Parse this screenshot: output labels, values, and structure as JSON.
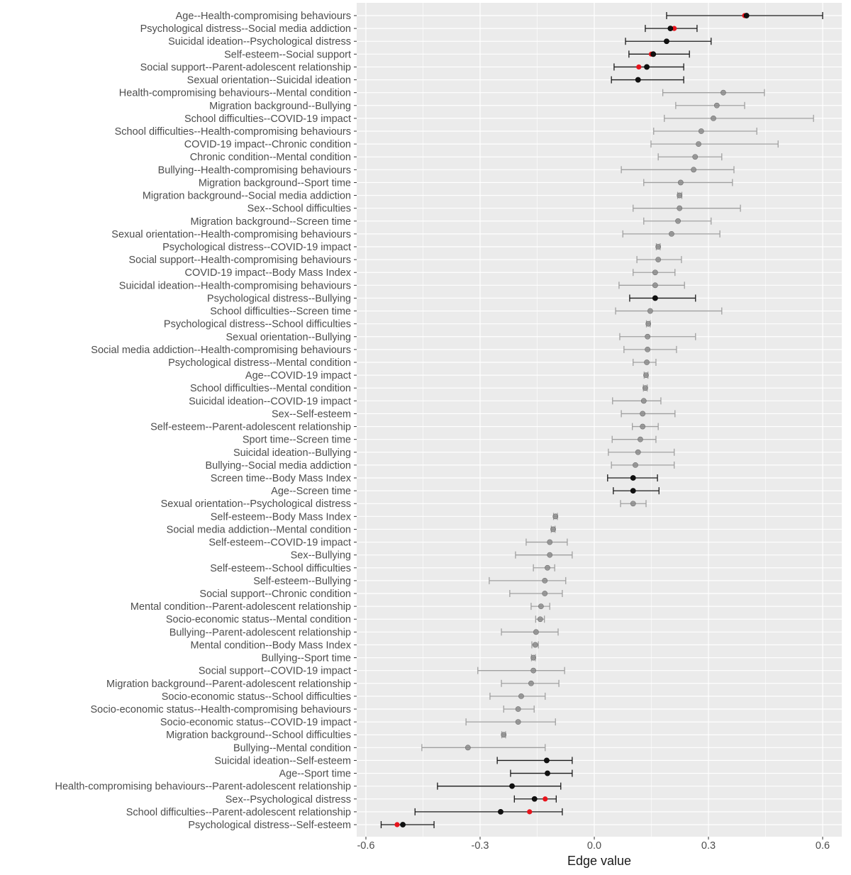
{
  "chart_data": {
    "type": "scatter",
    "subtype": "dot-and-whisker",
    "title": "",
    "xlabel": "Edge value",
    "ylabel": "",
    "xlim": [
      -0.6,
      0.6
    ],
    "xticks": [
      "-0.6",
      "-0.3",
      "0.0",
      "0.3",
      "0.6"
    ],
    "xtick_values": [
      -0.6,
      -0.3,
      0.0,
      0.3,
      0.6
    ],
    "grid": true,
    "colors": {
      "panel": "#ebebeb",
      "grid": "#ffffff",
      "highlight": "#000000",
      "normal": "#8c8c8c",
      "red_point": "#e8141c"
    },
    "rows": [
      {
        "label": "Age--Health-compromising behaviours",
        "est": 0.4,
        "lo": 0.19,
        "hi": 0.6,
        "dark": true,
        "red": 0.395
      },
      {
        "label": "Psychological distress--Social media addiction",
        "est": 0.2,
        "lo": 0.134,
        "hi": 0.27,
        "dark": true,
        "red": 0.21
      },
      {
        "label": "Suicidal ideation--Psychological distress",
        "est": 0.19,
        "lo": 0.082,
        "hi": 0.307,
        "dark": true,
        "red": null
      },
      {
        "label": "Self-esteem--Social support",
        "est": 0.155,
        "lo": 0.091,
        "hi": 0.25,
        "dark": true,
        "red": 0.15
      },
      {
        "label": "Social support--Parent-adolescent relationship",
        "est": 0.138,
        "lo": 0.052,
        "hi": 0.235,
        "dark": true,
        "red": 0.117
      },
      {
        "label": "Sexual orientation--Suicidal ideation",
        "est": 0.115,
        "lo": 0.045,
        "hi": 0.235,
        "dark": true,
        "red": null
      },
      {
        "label": "Health-compromising behaviours--Mental condition",
        "est": 0.339,
        "lo": 0.18,
        "hi": 0.447,
        "dark": false,
        "red": null
      },
      {
        "label": "Migration background--Bullying",
        "est": 0.322,
        "lo": 0.214,
        "hi": 0.395,
        "dark": false,
        "red": null
      },
      {
        "label": "School difficulties--COVID-19 impact",
        "est": 0.313,
        "lo": 0.184,
        "hi": 0.576,
        "dark": false,
        "red": null
      },
      {
        "label": "School difficulties--Health-compromising behaviours",
        "est": 0.281,
        "lo": 0.156,
        "hi": 0.427,
        "dark": false,
        "red": null
      },
      {
        "label": "COVID-19 impact--Chronic condition",
        "est": 0.274,
        "lo": 0.149,
        "hi": 0.483,
        "dark": false,
        "red": null
      },
      {
        "label": "Chronic condition--Mental condition",
        "est": 0.265,
        "lo": 0.168,
        "hi": 0.335,
        "dark": false,
        "red": null
      },
      {
        "label": "Bullying--Health-compromising behaviours",
        "est": 0.261,
        "lo": 0.071,
        "hi": 0.367,
        "dark": false,
        "red": null
      },
      {
        "label": "Migration background--Sport time",
        "est": 0.227,
        "lo": 0.13,
        "hi": 0.363,
        "dark": false,
        "red": null
      },
      {
        "label": "Migration background--Social media addiction",
        "est": 0.224,
        "lo": 0.219,
        "hi": 0.23,
        "dark": false,
        "red": null
      },
      {
        "label": "Sex--School difficulties",
        "est": 0.224,
        "lo": 0.102,
        "hi": 0.384,
        "dark": false,
        "red": null
      },
      {
        "label": "Migration background--Screen time",
        "est": 0.22,
        "lo": 0.13,
        "hi": 0.307,
        "dark": false,
        "red": null
      },
      {
        "label": "Sexual orientation--Health-compromising behaviours",
        "est": 0.203,
        "lo": 0.075,
        "hi": 0.33,
        "dark": false,
        "red": null
      },
      {
        "label": "Psychological distress--COVID-19 impact",
        "est": 0.168,
        "lo": 0.163,
        "hi": 0.173,
        "dark": false,
        "red": null
      },
      {
        "label": "Social support--Health-compromising behaviours",
        "est": 0.168,
        "lo": 0.112,
        "hi": 0.229,
        "dark": false,
        "red": null
      },
      {
        "label": "COVID-19 impact--Body Mass Index",
        "est": 0.16,
        "lo": 0.102,
        "hi": 0.212,
        "dark": false,
        "red": null
      },
      {
        "label": "Suicidal ideation--Health-compromising behaviours",
        "est": 0.16,
        "lo": 0.065,
        "hi": 0.237,
        "dark": false,
        "red": null
      },
      {
        "label": "Psychological distress--Bullying",
        "est": 0.16,
        "lo": 0.093,
        "hi": 0.266,
        "dark": true,
        "red": null
      },
      {
        "label": "School difficulties--Screen time",
        "est": 0.147,
        "lo": 0.056,
        "hi": 0.335,
        "dark": false,
        "red": null
      },
      {
        "label": "Psychological distress--School difficulties",
        "est": 0.142,
        "lo": 0.137,
        "hi": 0.147,
        "dark": false,
        "red": null
      },
      {
        "label": "Sexual orientation--Bullying",
        "est": 0.14,
        "lo": 0.067,
        "hi": 0.266,
        "dark": false,
        "red": null
      },
      {
        "label": "Social media addiction--Health-compromising behaviours",
        "est": 0.14,
        "lo": 0.078,
        "hi": 0.216,
        "dark": false,
        "red": null
      },
      {
        "label": "Psychological distress--Mental condition",
        "est": 0.138,
        "lo": 0.102,
        "hi": 0.162,
        "dark": false,
        "red": null
      },
      {
        "label": "Age--COVID-19 impact",
        "est": 0.136,
        "lo": 0.131,
        "hi": 0.141,
        "dark": false,
        "red": null
      },
      {
        "label": "School difficulties--Mental condition",
        "est": 0.134,
        "lo": 0.129,
        "hi": 0.139,
        "dark": false,
        "red": null
      },
      {
        "label": "Suicidal ideation--COVID-19 impact",
        "est": 0.13,
        "lo": 0.048,
        "hi": 0.175,
        "dark": false,
        "red": null
      },
      {
        "label": "Sex--Self-esteem",
        "est": 0.127,
        "lo": 0.071,
        "hi": 0.212,
        "dark": false,
        "red": null
      },
      {
        "label": "Self-esteem--Parent-adolescent relationship",
        "est": 0.127,
        "lo": 0.1,
        "hi": 0.168,
        "dark": false,
        "red": null
      },
      {
        "label": "Sport time--Screen time",
        "est": 0.121,
        "lo": 0.047,
        "hi": 0.162,
        "dark": false,
        "red": null
      },
      {
        "label": "Suicidal ideation--Bullying",
        "est": 0.115,
        "lo": 0.037,
        "hi": 0.21,
        "dark": false,
        "red": null
      },
      {
        "label": "Bullying--Social media addiction",
        "est": 0.108,
        "lo": 0.045,
        "hi": 0.21,
        "dark": false,
        "red": null
      },
      {
        "label": "Screen time--Body Mass Index",
        "est": 0.102,
        "lo": 0.035,
        "hi": 0.166,
        "dark": true,
        "red": null
      },
      {
        "label": "Age--Screen time",
        "est": 0.102,
        "lo": 0.05,
        "hi": 0.17,
        "dark": true,
        "red": null
      },
      {
        "label": "Sexual orientation--Psychological distress",
        "est": 0.102,
        "lo": 0.069,
        "hi": 0.136,
        "dark": false,
        "red": null
      },
      {
        "label": "Self-esteem--Body Mass Index",
        "est": -0.102,
        "lo": -0.107,
        "hi": -0.097,
        "dark": false,
        "red": null
      },
      {
        "label": "Social media addiction--Mental condition",
        "est": -0.108,
        "lo": -0.113,
        "hi": -0.103,
        "dark": false,
        "red": null
      },
      {
        "label": "Self-esteem--COVID-19 impact",
        "est": -0.117,
        "lo": -0.179,
        "hi": -0.071,
        "dark": false,
        "red": null
      },
      {
        "label": "Sex--Bullying",
        "est": -0.117,
        "lo": -0.207,
        "hi": -0.058,
        "dark": false,
        "red": null
      },
      {
        "label": "Self-esteem--School difficulties",
        "est": -0.123,
        "lo": -0.16,
        "hi": -0.104,
        "dark": false,
        "red": null
      },
      {
        "label": "Self-esteem--Bullying",
        "est": -0.13,
        "lo": -0.276,
        "hi": -0.075,
        "dark": false,
        "red": null
      },
      {
        "label": "Social support--Chronic condition",
        "est": -0.13,
        "lo": -0.222,
        "hi": -0.084,
        "dark": false,
        "red": null
      },
      {
        "label": "Mental condition--Parent-adolescent relationship",
        "est": -0.14,
        "lo": -0.166,
        "hi": -0.117,
        "dark": false,
        "red": null
      },
      {
        "label": "Socio-economic status--Mental condition",
        "est": -0.142,
        "lo": -0.154,
        "hi": -0.131,
        "dark": false,
        "red": null
      },
      {
        "label": "Bullying--Parent-adolescent relationship",
        "est": -0.153,
        "lo": -0.244,
        "hi": -0.095,
        "dark": false,
        "red": null
      },
      {
        "label": "Mental condition--Body Mass Index",
        "est": -0.155,
        "lo": -0.164,
        "hi": -0.147,
        "dark": false,
        "red": null
      },
      {
        "label": "Bullying--Sport time",
        "est": -0.16,
        "lo": -0.165,
        "hi": -0.155,
        "dark": false,
        "red": null
      },
      {
        "label": "Social support--COVID-19 impact",
        "est": -0.16,
        "lo": -0.306,
        "hi": -0.078,
        "dark": false,
        "red": null
      },
      {
        "label": "Migration background--Parent-adolescent relationship",
        "est": -0.166,
        "lo": -0.244,
        "hi": -0.093,
        "dark": false,
        "red": null
      },
      {
        "label": "Socio-economic status--School difficulties",
        "est": -0.192,
        "lo": -0.274,
        "hi": -0.129,
        "dark": false,
        "red": null
      },
      {
        "label": "Socio-economic status--Health-compromising behaviours",
        "est": -0.2,
        "lo": -0.238,
        "hi": -0.158,
        "dark": false,
        "red": null
      },
      {
        "label": "Socio-economic status--COVID-19 impact",
        "est": -0.2,
        "lo": -0.337,
        "hi": -0.102,
        "dark": false,
        "red": null
      },
      {
        "label": "Migration background--School difficulties",
        "est": -0.238,
        "lo": -0.243,
        "hi": -0.233,
        "dark": false,
        "red": null
      },
      {
        "label": "Bullying--Mental condition",
        "est": -0.332,
        "lo": -0.453,
        "hi": -0.129,
        "dark": false,
        "red": null
      },
      {
        "label": "Suicidal ideation--Self-esteem",
        "est": -0.125,
        "lo": -0.255,
        "hi": -0.058,
        "dark": true,
        "red": null
      },
      {
        "label": "Age--Sport time",
        "est": -0.123,
        "lo": -0.22,
        "hi": -0.058,
        "dark": true,
        "red": null
      },
      {
        "label": "Health-compromising behaviours--Parent-adolescent relationship",
        "est": -0.216,
        "lo": -0.412,
        "hi": -0.088,
        "dark": true,
        "red": null
      },
      {
        "label": "Sex--Psychological distress",
        "est": -0.157,
        "lo": -0.21,
        "hi": -0.1,
        "dark": true,
        "red": -0.129
      },
      {
        "label": "School difficulties--Parent-adolescent relationship",
        "est": -0.246,
        "lo": -0.471,
        "hi": -0.084,
        "dark": true,
        "red": -0.17
      },
      {
        "label": "Psychological distress--Self-esteem",
        "est": -0.503,
        "lo": -0.56,
        "hi": -0.421,
        "dark": true,
        "red": -0.518
      }
    ]
  }
}
